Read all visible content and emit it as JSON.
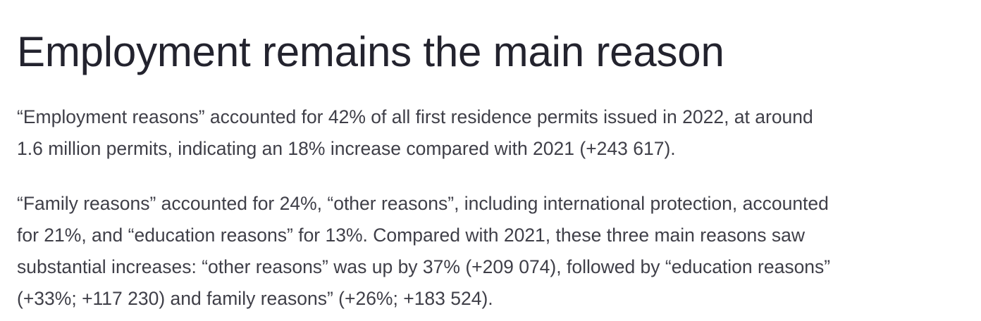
{
  "heading": "Employment remains the main reason",
  "paragraphs": [
    {
      "lines": [
        "“Employment reasons” accounted for 42% of all first residence permits issued in 2022, at around",
        "1.6 million permits, indicating an 18% increase compared with 2021 (+243 617)."
      ]
    },
    {
      "lines": [
        "“Family reasons” accounted for 24%, “other reasons”, including international protection, accounted",
        "for 21%, and “education reasons” for 13%. Compared with 2021, these three main reasons saw",
        "substantial increases: “other reasons” was up by 37% (+209 074), followed by “education reasons”",
        "(+33%; +117 230) and family reasons” (+26%; +183 524)."
      ]
    }
  ]
}
